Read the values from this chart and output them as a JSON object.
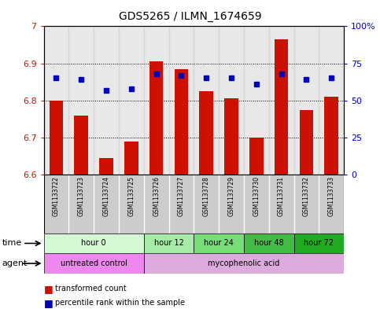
{
  "title": "GDS5265 / ILMN_1674659",
  "samples": [
    "GSM1133722",
    "GSM1133723",
    "GSM1133724",
    "GSM1133725",
    "GSM1133726",
    "GSM1133727",
    "GSM1133728",
    "GSM1133729",
    "GSM1133730",
    "GSM1133731",
    "GSM1133732",
    "GSM1133733"
  ],
  "transformed_count": [
    6.8,
    6.76,
    6.645,
    6.69,
    6.905,
    6.885,
    6.825,
    6.805,
    6.7,
    6.965,
    6.775,
    6.81
  ],
  "percentile_rank": [
    65,
    64,
    57,
    58,
    68,
    67,
    65,
    65,
    61,
    68,
    64,
    65
  ],
  "ylim_left": [
    6.6,
    7.0
  ],
  "ylim_right": [
    0,
    100
  ],
  "yticks_left": [
    6.6,
    6.7,
    6.8,
    6.9,
    7.0
  ],
  "ytick_labels_left": [
    "6.6",
    "6.7",
    "6.8",
    "6.9",
    "7"
  ],
  "yticks_right": [
    0,
    25,
    50,
    75,
    100
  ],
  "ytick_labels_right": [
    "0",
    "25",
    "50",
    "75",
    "100%"
  ],
  "bar_color": "#cc1100",
  "dot_color": "#0000bb",
  "bar_bottom": 6.6,
  "time_groups": [
    {
      "label": "hour 0",
      "start": 0,
      "end": 4,
      "color": "#d4f7d4"
    },
    {
      "label": "hour 12",
      "start": 4,
      "end": 6,
      "color": "#a8eaa8"
    },
    {
      "label": "hour 24",
      "start": 6,
      "end": 8,
      "color": "#77dd77"
    },
    {
      "label": "hour 48",
      "start": 8,
      "end": 10,
      "color": "#44bb44"
    },
    {
      "label": "hour 72",
      "start": 10,
      "end": 12,
      "color": "#22aa22"
    }
  ],
  "agent_groups": [
    {
      "label": "untreated control",
      "start": 0,
      "end": 4,
      "color": "#ee88ee"
    },
    {
      "label": "mycophenolic acid",
      "start": 4,
      "end": 12,
      "color": "#ddaadd"
    }
  ],
  "col_bg_color": "#cccccc",
  "plot_border_color": "#000000"
}
